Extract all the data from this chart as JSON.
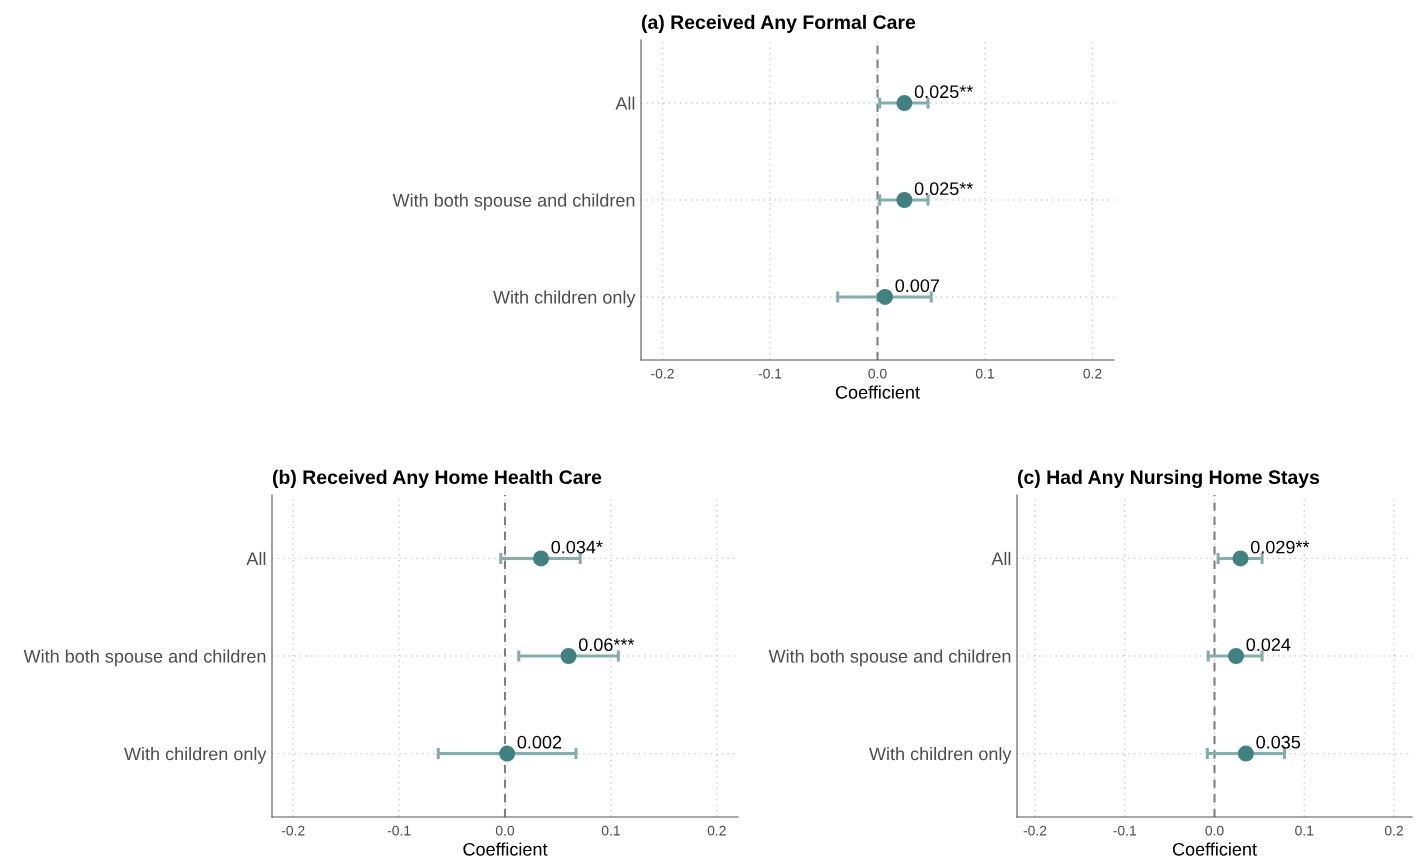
{
  "chart_data": [
    {
      "type": "scatter",
      "title": "(a) Received Any Formal Care",
      "xlabel": "Coefficient",
      "orientation": "horizontal",
      "categories": [
        "All",
        "With both spouse and children",
        "With children only"
      ],
      "series": [
        {
          "color": "#3f8280",
          "values": [
            0.025,
            0.025,
            0.007
          ],
          "errors": [
            [
              0.002,
              0.047
            ],
            [
              0.002,
              0.047
            ],
            [
              -0.037,
              0.05
            ]
          ],
          "value_labels": [
            "0.025**",
            "0.025**",
            "0.007"
          ]
        }
      ],
      "xlim": [
        -0.22,
        0.22
      ],
      "xticks": [
        {
          "value": -0.2,
          "label": "-0.2"
        },
        {
          "value": -0.1,
          "label": "-0.1"
        },
        {
          "value": 0,
          "label": "0.0"
        },
        {
          "value": 0.1,
          "label": "0.1"
        },
        {
          "value": 0.2,
          "label": "0.2"
        }
      ],
      "ref_lines": [
        {
          "axis": "x",
          "value": 0,
          "color": "#808080",
          "line_style": "dashed"
        }
      ],
      "grid": true,
      "marker": "circle"
    },
    {
      "type": "scatter",
      "title": "(b) Received Any Home Health Care",
      "xlabel": "Coefficient",
      "orientation": "horizontal",
      "categories": [
        "All",
        "With both spouse and children",
        "With children only"
      ],
      "series": [
        {
          "color": "#3f8280",
          "values": [
            0.034,
            0.06,
            0.002
          ],
          "errors": [
            [
              -0.004,
              0.071
            ],
            [
              0.013,
              0.107
            ],
            [
              -0.063,
              0.067
            ]
          ],
          "value_labels": [
            "0.034*",
            "0.06***",
            "0.002"
          ]
        }
      ],
      "xlim": [
        -0.22,
        0.22
      ],
      "xticks": [
        {
          "value": -0.2,
          "label": "-0.2"
        },
        {
          "value": -0.1,
          "label": "-0.1"
        },
        {
          "value": 0,
          "label": "0.0"
        },
        {
          "value": 0.1,
          "label": "0.1"
        },
        {
          "value": 0.2,
          "label": "0.2"
        }
      ],
      "ref_lines": [
        {
          "axis": "x",
          "value": 0,
          "color": "#808080",
          "line_style": "dashed"
        }
      ],
      "grid": true,
      "marker": "circle"
    },
    {
      "type": "scatter",
      "title": "(c) Had Any Nursing Home Stays",
      "xlabel": "Coefficient",
      "orientation": "horizontal",
      "categories": [
        "All",
        "With both spouse and children",
        "With children only"
      ],
      "series": [
        {
          "color": "#3f8280",
          "values": [
            0.029,
            0.024,
            0.035
          ],
          "errors": [
            [
              0.004,
              0.053
            ],
            [
              -0.007,
              0.053
            ],
            [
              -0.008,
              0.078
            ]
          ],
          "value_labels": [
            "0.029**",
            "0.024",
            "0.035"
          ]
        }
      ],
      "xlim": [
        -0.22,
        0.22
      ],
      "xticks": [
        {
          "value": -0.2,
          "label": "-0.2"
        },
        {
          "value": -0.1,
          "label": "-0.1"
        },
        {
          "value": 0,
          "label": "0.0"
        },
        {
          "value": 0.1,
          "label": "0.1"
        },
        {
          "value": 0.2,
          "label": "0.2"
        }
      ],
      "ref_lines": [
        {
          "axis": "x",
          "value": 0,
          "color": "#808080",
          "line_style": "dashed"
        }
      ],
      "grid": true,
      "marker": "circle"
    }
  ]
}
